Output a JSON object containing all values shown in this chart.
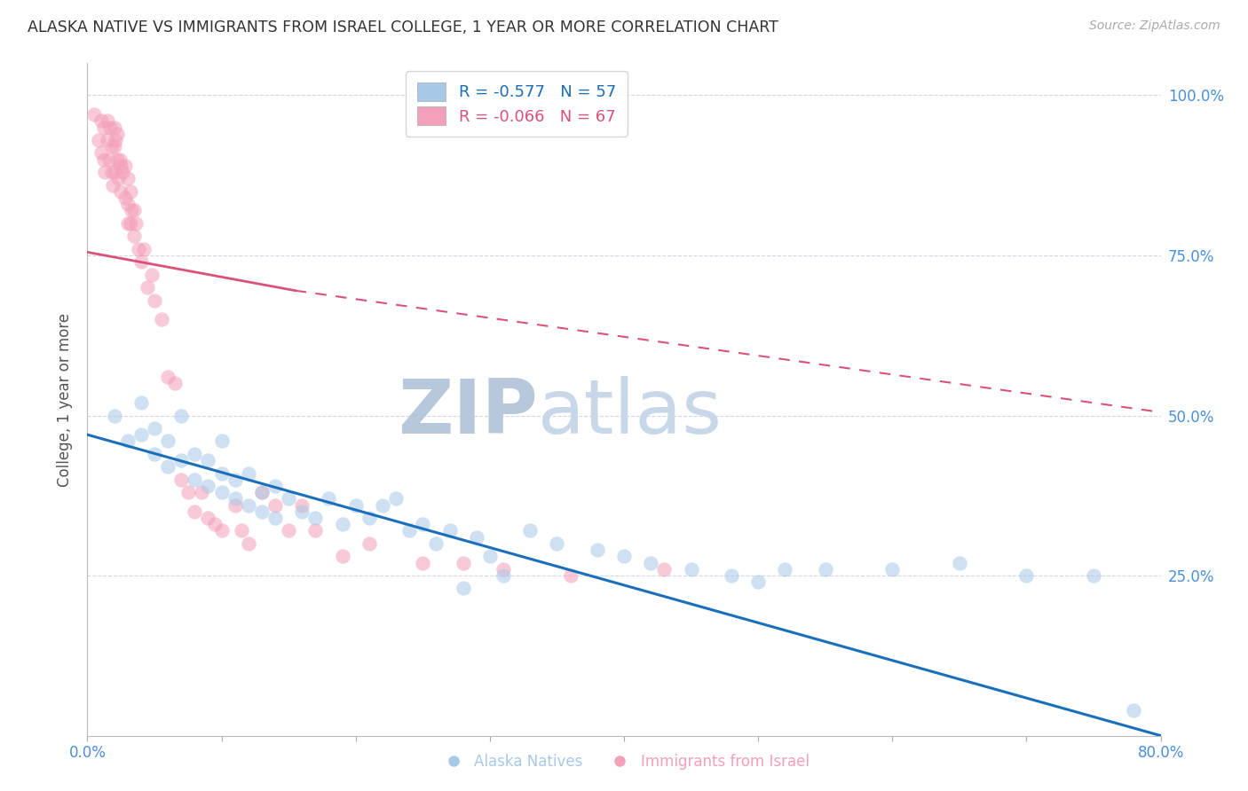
{
  "title": "ALASKA NATIVE VS IMMIGRANTS FROM ISRAEL COLLEGE, 1 YEAR OR MORE CORRELATION CHART",
  "source": "Source: ZipAtlas.com",
  "ylabel": "College, 1 year or more",
  "xlabel": "",
  "xlim": [
    0.0,
    0.8
  ],
  "ylim": [
    0.0,
    1.05
  ],
  "yticks": [
    0.25,
    0.5,
    0.75,
    1.0
  ],
  "ytick_labels": [
    "25.0%",
    "50.0%",
    "75.0%",
    "100.0%"
  ],
  "xticks": [
    0.0,
    0.1,
    0.2,
    0.3,
    0.4,
    0.5,
    0.6,
    0.7,
    0.8
  ],
  "xtick_labels": [
    "0.0%",
    "",
    "",
    "",
    "",
    "",
    "",
    "",
    "80.0%"
  ],
  "blue_R": -0.577,
  "blue_N": 57,
  "pink_R": -0.066,
  "pink_N": 67,
  "blue_color": "#a8c8e8",
  "pink_color": "#f4a0b8",
  "blue_line_color": "#1a6fba",
  "pink_line_color": "#d9527a",
  "title_color": "#333333",
  "axis_color": "#4a90d9",
  "grid_color": "#d0d8e8",
  "watermark_color_zip": "#b8c8dc",
  "watermark_color_atlas": "#c8d8e8",
  "background_color": "#ffffff",
  "blue_scatter_x": [
    0.02,
    0.03,
    0.04,
    0.04,
    0.05,
    0.05,
    0.06,
    0.06,
    0.07,
    0.07,
    0.08,
    0.08,
    0.09,
    0.09,
    0.1,
    0.1,
    0.1,
    0.11,
    0.11,
    0.12,
    0.12,
    0.13,
    0.13,
    0.14,
    0.14,
    0.15,
    0.16,
    0.17,
    0.18,
    0.19,
    0.2,
    0.21,
    0.22,
    0.23,
    0.24,
    0.25,
    0.26,
    0.27,
    0.28,
    0.29,
    0.3,
    0.31,
    0.33,
    0.35,
    0.38,
    0.4,
    0.42,
    0.45,
    0.48,
    0.5,
    0.52,
    0.55,
    0.6,
    0.65,
    0.7,
    0.75,
    0.78
  ],
  "blue_scatter_y": [
    0.5,
    0.46,
    0.47,
    0.52,
    0.44,
    0.48,
    0.46,
    0.42,
    0.5,
    0.43,
    0.44,
    0.4,
    0.43,
    0.39,
    0.46,
    0.41,
    0.38,
    0.4,
    0.37,
    0.41,
    0.36,
    0.38,
    0.35,
    0.39,
    0.34,
    0.37,
    0.35,
    0.34,
    0.37,
    0.33,
    0.36,
    0.34,
    0.36,
    0.37,
    0.32,
    0.33,
    0.3,
    0.32,
    0.23,
    0.31,
    0.28,
    0.25,
    0.32,
    0.3,
    0.29,
    0.28,
    0.27,
    0.26,
    0.25,
    0.24,
    0.26,
    0.26,
    0.26,
    0.27,
    0.25,
    0.25,
    0.04
  ],
  "pink_scatter_x": [
    0.005,
    0.008,
    0.01,
    0.01,
    0.012,
    0.012,
    0.013,
    0.015,
    0.015,
    0.016,
    0.017,
    0.018,
    0.018,
    0.019,
    0.02,
    0.02,
    0.02,
    0.021,
    0.022,
    0.022,
    0.023,
    0.024,
    0.025,
    0.025,
    0.026,
    0.028,
    0.028,
    0.03,
    0.03,
    0.03,
    0.032,
    0.032,
    0.033,
    0.035,
    0.035,
    0.036,
    0.038,
    0.04,
    0.042,
    0.045,
    0.048,
    0.05,
    0.055,
    0.06,
    0.065,
    0.07,
    0.075,
    0.08,
    0.085,
    0.09,
    0.095,
    0.1,
    0.11,
    0.115,
    0.12,
    0.13,
    0.14,
    0.15,
    0.16,
    0.17,
    0.19,
    0.21,
    0.25,
    0.28,
    0.31,
    0.36,
    0.43
  ],
  "pink_scatter_y": [
    0.97,
    0.93,
    0.96,
    0.91,
    0.95,
    0.9,
    0.88,
    0.96,
    0.93,
    0.9,
    0.95,
    0.92,
    0.88,
    0.86,
    0.95,
    0.92,
    0.88,
    0.93,
    0.94,
    0.9,
    0.87,
    0.9,
    0.89,
    0.85,
    0.88,
    0.89,
    0.84,
    0.87,
    0.83,
    0.8,
    0.85,
    0.8,
    0.82,
    0.82,
    0.78,
    0.8,
    0.76,
    0.74,
    0.76,
    0.7,
    0.72,
    0.68,
    0.65,
    0.56,
    0.55,
    0.4,
    0.38,
    0.35,
    0.38,
    0.34,
    0.33,
    0.32,
    0.36,
    0.32,
    0.3,
    0.38,
    0.36,
    0.32,
    0.36,
    0.32,
    0.28,
    0.3,
    0.27,
    0.27,
    0.26,
    0.25,
    0.26
  ],
  "blue_line_x": [
    0.0,
    0.8
  ],
  "blue_line_y": [
    0.47,
    0.0
  ],
  "pink_solid_line_x": [
    0.0,
    0.155
  ],
  "pink_solid_line_y": [
    0.755,
    0.695
  ],
  "pink_dashed_line_x": [
    0.155,
    0.8
  ],
  "pink_dashed_line_y": [
    0.695,
    0.505
  ]
}
